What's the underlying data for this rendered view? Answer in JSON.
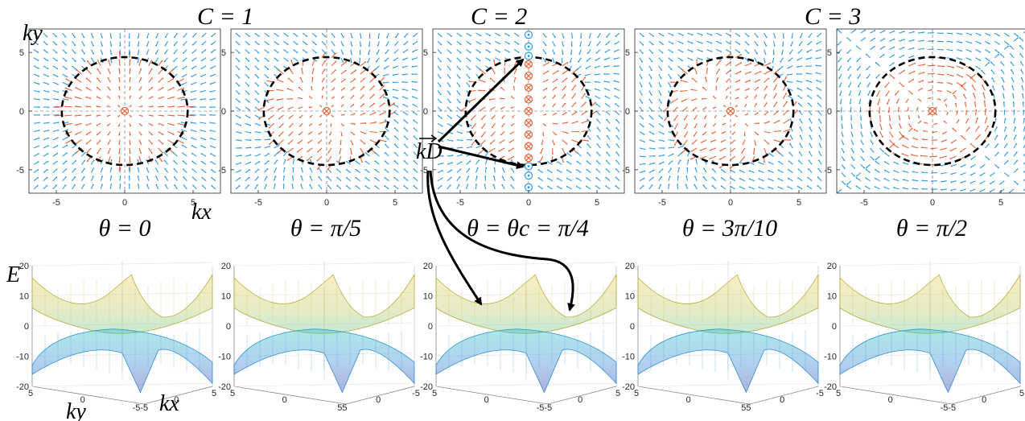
{
  "chern_labels": [
    {
      "text": "C = 1"
    },
    {
      "text": "C = 2"
    },
    {
      "text": "C = 3"
    }
  ],
  "vector_panels": [
    {
      "theta_label": "θ = 0",
      "theta_rad": 0
    },
    {
      "theta_label": "θ = π/5",
      "theta_rad": 0.6283
    },
    {
      "theta_label": "θ = θc = π/4",
      "theta_rad": 0.7854
    },
    {
      "theta_label": "θ = 3π/10",
      "theta_rad": 0.9425
    },
    {
      "theta_label": "θ = π/2",
      "theta_rad": 1.5708
    }
  ],
  "axes": {
    "vector_xticks": [
      "-5",
      "0",
      "5"
    ],
    "vector_yticks": [
      "5",
      "0",
      "-5"
    ],
    "xlabel": "kx",
    "ylabel": "ky",
    "surface_zticks": [
      "20",
      "10",
      "0",
      "-10",
      "-20"
    ],
    "surface_zlabel": "E",
    "surface_kylabel": "ky",
    "surface_kxlabel": "kx",
    "surface_bottom_ticks": [
      [
        "5",
        "0",
        "-5-5",
        "0",
        "5"
      ],
      [
        "5",
        "0",
        "55",
        "0",
        "-5"
      ],
      [
        "5",
        "0",
        "-5-5",
        "0",
        "5"
      ],
      [
        "5",
        "0",
        "55",
        "0",
        "-5"
      ],
      [
        "5",
        "0",
        "-5-5",
        "0",
        "5"
      ]
    ]
  },
  "annotation": {
    "label": "kD"
  },
  "chart_data": [
    {
      "type": "vector_field",
      "title": "",
      "xlabel": "kx",
      "ylabel": "ky",
      "xlim": [
        -7,
        7
      ],
      "ylim": [
        -7,
        7
      ],
      "dashed_circle_radius": 4.6,
      "center_marker": "⊗ at (0,0)",
      "panels_theta": [
        "0",
        "π/5",
        "π/4",
        "3π/10",
        "π/2"
      ],
      "panel3_markers": {
        "otimes_y": [
          -4,
          -3,
          -2,
          -1,
          0,
          1,
          2,
          3,
          4
        ],
        "odot_y": [
          -6.5,
          -5.5,
          -4.7,
          4.7,
          5.5,
          6.5
        ]
      },
      "colors": {
        "inside": "#e8643a",
        "outside": "#2f9be0"
      }
    },
    {
      "type": "surface",
      "title": "",
      "zlabel": "E",
      "zlim": [
        -20,
        20
      ],
      "bands": [
        "upper (yellow-green)",
        "lower (cyan-blue)"
      ]
    }
  ]
}
